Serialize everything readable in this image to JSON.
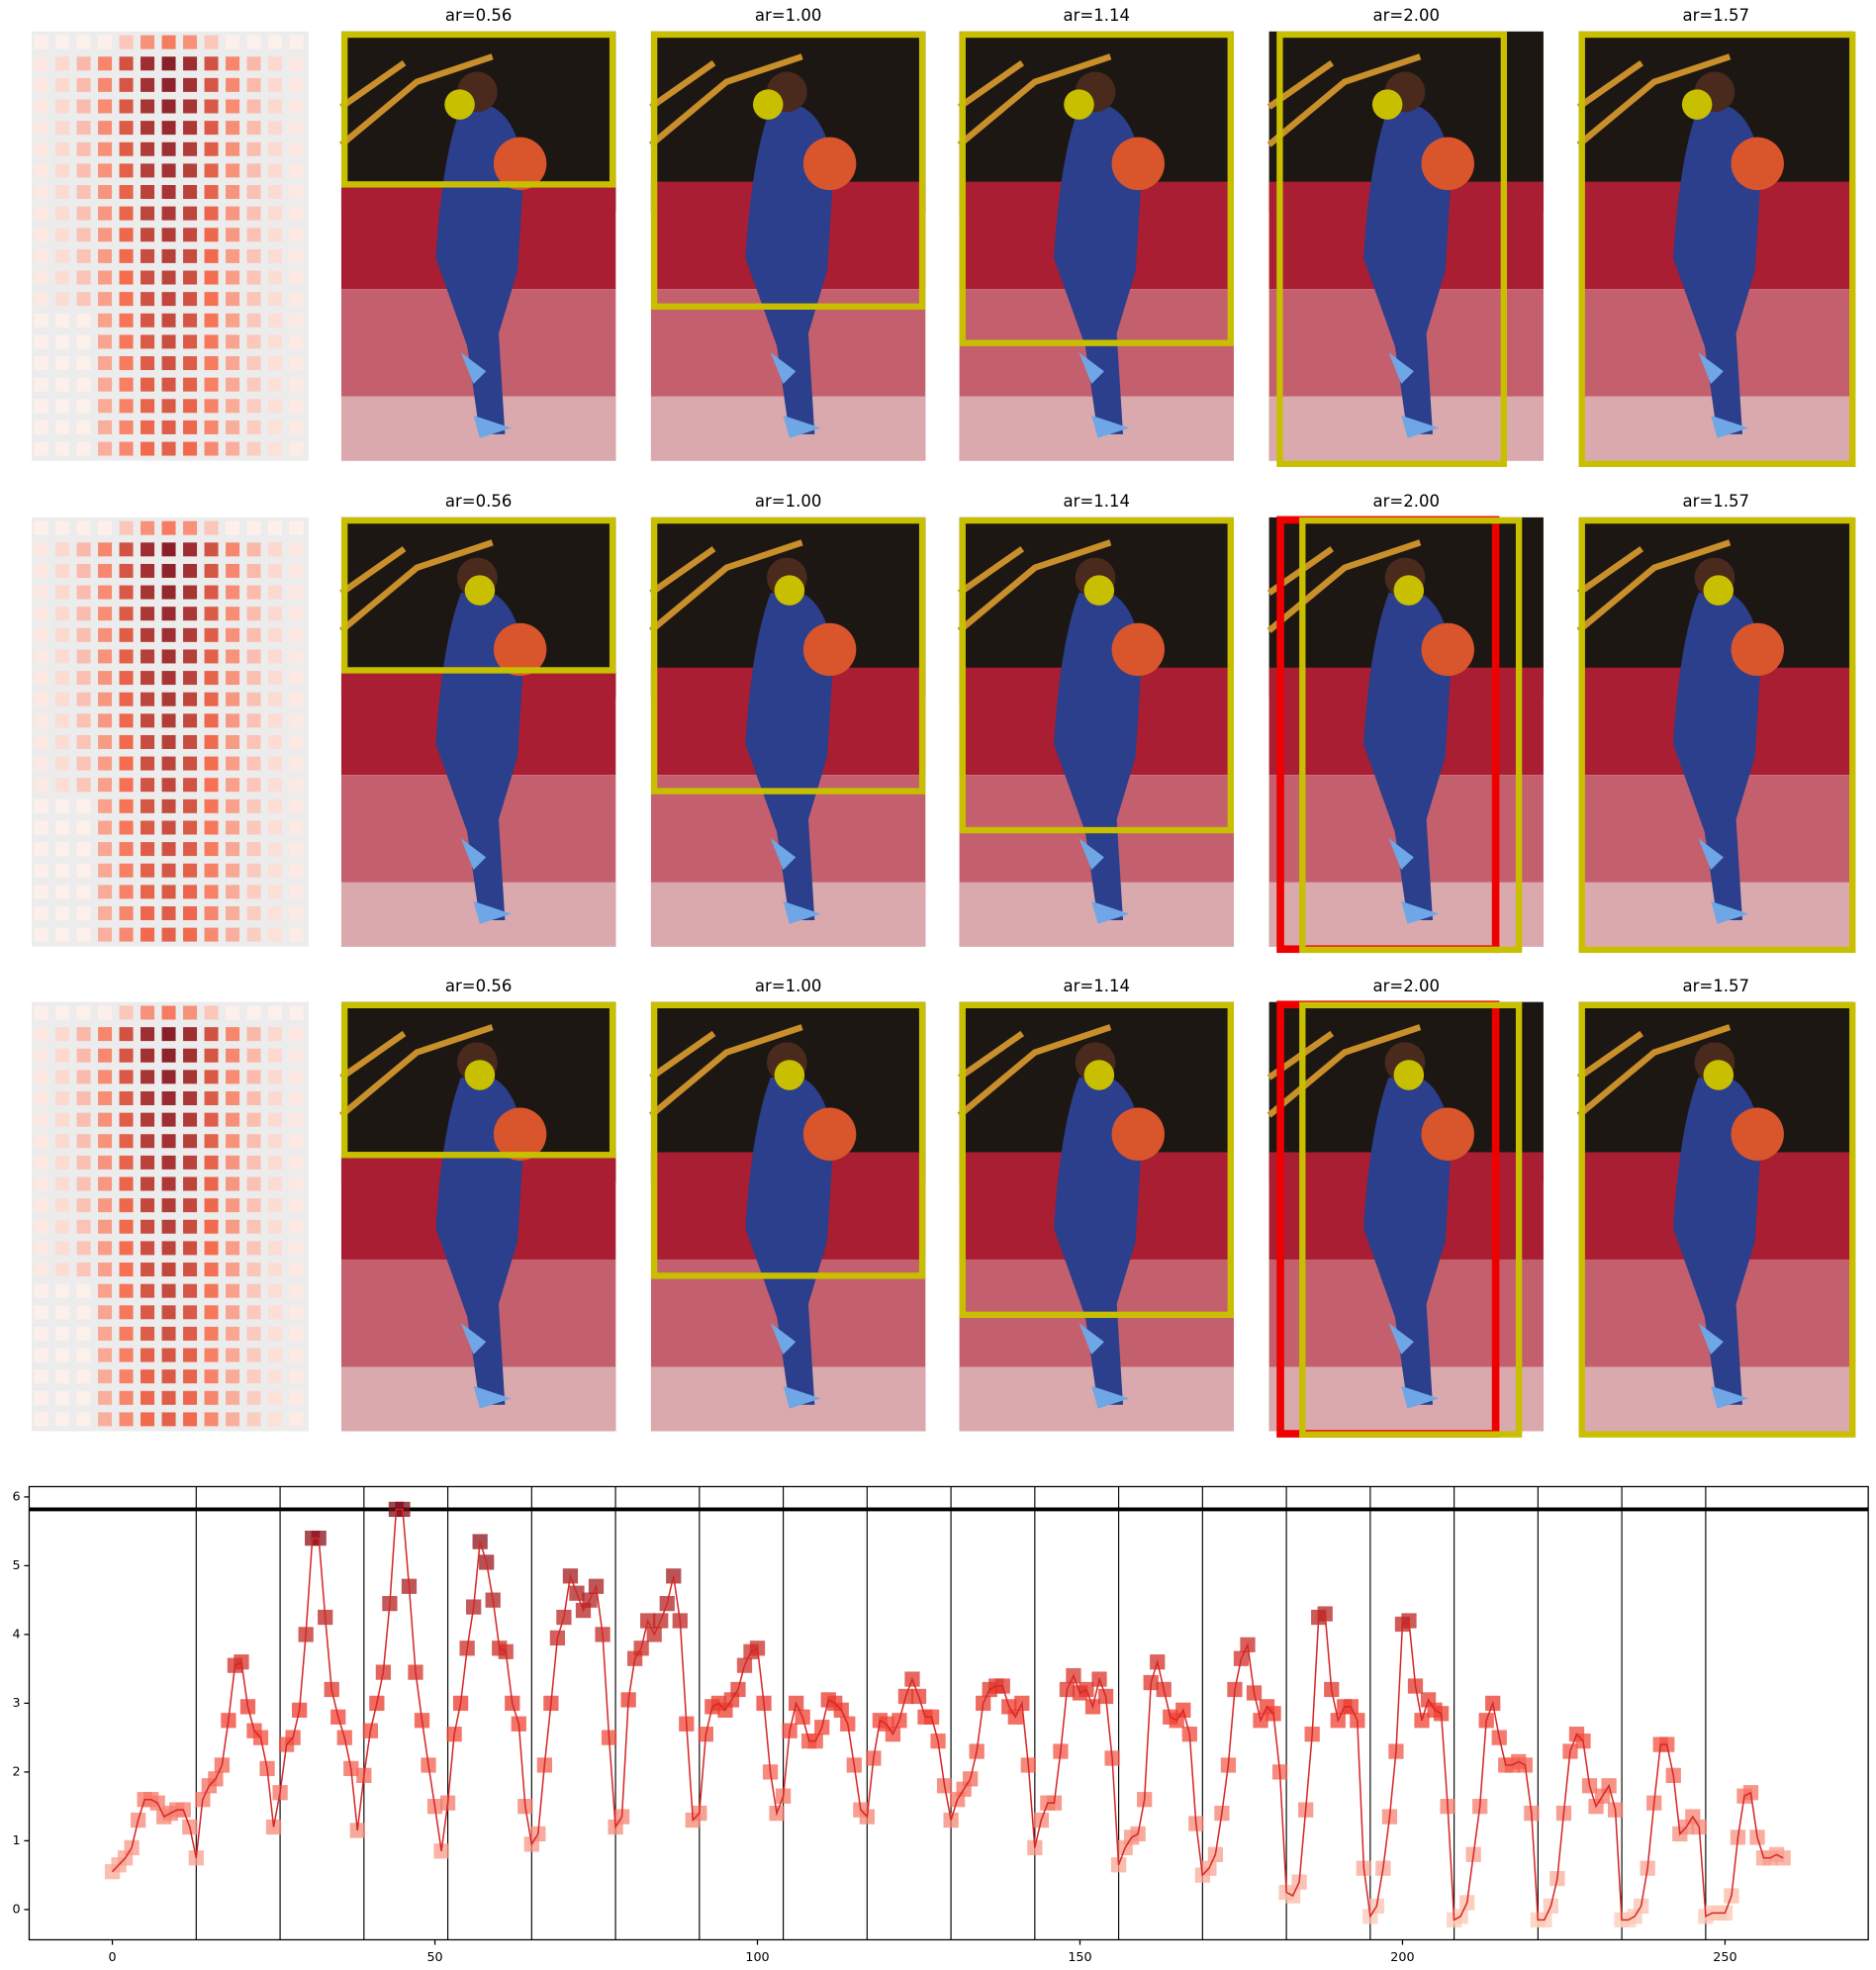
{
  "panel_titles": [
    [
      "ar=0.56",
      "ar=1.00",
      "ar=1.14",
      "ar=2.00",
      "ar=1.57"
    ],
    [
      "ar=0.56",
      "ar=1.00",
      "ar=1.14",
      "ar=2.00",
      "ar=1.57"
    ],
    [
      "ar=0.56",
      "ar=1.00",
      "ar=1.14",
      "ar=2.00",
      "ar=1.57"
    ]
  ],
  "chart_data": {
    "type": "line",
    "color": "#d62728",
    "hline": 5.82,
    "vlines": [
      13,
      26,
      39,
      52,
      65,
      78,
      91,
      104,
      117,
      130,
      143,
      156,
      169,
      182,
      195,
      208,
      221,
      234,
      247
    ],
    "xlim": [
      -12.9,
      272.2
    ],
    "ylim": [
      -0.44,
      6.15
    ],
    "xticks": [
      0,
      50,
      100,
      150,
      200,
      250
    ],
    "yticks": [
      0,
      1,
      2,
      3,
      4,
      5,
      6
    ],
    "x": [
      0,
      1,
      2,
      3,
      4,
      5,
      6,
      7,
      8,
      9,
      10,
      11,
      12,
      13,
      14,
      15,
      16,
      17,
      18,
      19,
      20,
      21,
      22,
      23,
      24,
      25,
      26,
      27,
      28,
      29,
      30,
      31,
      32,
      33,
      34,
      35,
      36,
      37,
      38,
      39,
      40,
      41,
      42,
      43,
      44,
      45,
      46,
      47,
      48,
      49,
      50,
      51,
      52,
      53,
      54,
      55,
      56,
      57,
      58,
      59,
      60,
      61,
      62,
      63,
      64,
      65,
      66,
      67,
      68,
      69,
      70,
      71,
      72,
      73,
      74,
      75,
      76,
      77,
      78,
      79,
      80,
      81,
      82,
      83,
      84,
      85,
      86,
      87,
      88,
      89,
      90,
      91,
      92,
      93,
      94,
      95,
      96,
      97,
      98,
      99,
      100,
      101,
      102,
      103,
      104,
      105,
      106,
      107,
      108,
      109,
      110,
      111,
      112,
      113,
      114,
      115,
      116,
      117,
      118,
      119,
      120,
      121,
      122,
      123,
      124,
      125,
      126,
      127,
      128,
      129,
      130,
      131,
      132,
      133,
      134,
      135,
      136,
      137,
      138,
      139,
      140,
      141,
      142,
      143,
      144,
      145,
      146,
      147,
      148,
      149,
      150,
      151,
      152,
      153,
      154,
      155,
      156,
      157,
      158,
      159,
      160,
      161,
      162,
      163,
      164,
      165,
      166,
      167,
      168,
      169,
      170,
      171,
      172,
      173,
      174,
      175,
      176,
      177,
      178,
      179,
      180,
      181,
      182,
      183,
      184,
      185,
      186,
      187,
      188,
      189,
      190,
      191,
      192,
      193,
      194,
      195,
      196,
      197,
      198,
      199,
      200,
      201,
      202,
      203,
      204,
      205,
      206,
      207,
      208,
      209,
      210,
      211,
      212,
      213,
      214,
      215,
      216,
      217,
      218,
      219,
      220,
      221,
      222,
      223,
      224,
      225,
      226,
      227,
      228,
      229,
      230,
      231,
      232,
      233,
      234,
      235,
      236,
      237,
      238,
      239,
      240,
      241,
      242,
      243,
      244,
      245,
      246,
      247,
      248,
      249,
      250,
      251,
      252,
      253,
      254,
      255,
      256,
      257,
      258,
      259
    ],
    "values": [
      0.55,
      0.65,
      0.75,
      0.9,
      1.3,
      1.6,
      1.6,
      1.55,
      1.35,
      1.4,
      1.45,
      1.45,
      1.2,
      0.75,
      1.6,
      1.8,
      1.9,
      2.1,
      2.75,
      3.55,
      3.6,
      2.95,
      2.6,
      2.5,
      2.05,
      1.2,
      1.7,
      2.4,
      2.5,
      2.9,
      4.0,
      5.4,
      5.4,
      4.25,
      3.2,
      2.8,
      2.5,
      2.05,
      1.15,
      1.95,
      2.6,
      3.0,
      3.45,
      4.45,
      5.82,
      5.82,
      4.7,
      3.45,
      2.75,
      2.1,
      1.5,
      0.85,
      1.55,
      2.55,
      3.0,
      3.8,
      4.4,
      5.35,
      5.05,
      4.5,
      3.8,
      3.75,
      3.0,
      2.7,
      1.5,
      0.95,
      1.1,
      2.1,
      3.0,
      3.95,
      4.25,
      4.85,
      4.6,
      4.35,
      4.5,
      4.7,
      4.0,
      2.5,
      1.2,
      1.35,
      3.05,
      3.65,
      3.8,
      4.2,
      4.0,
      4.2,
      4.45,
      4.85,
      4.2,
      2.7,
      1.3,
      1.4,
      2.55,
      2.95,
      3.0,
      2.9,
      3.05,
      3.2,
      3.55,
      3.75,
      3.8,
      3.0,
      2.0,
      1.4,
      1.65,
      2.6,
      3.0,
      2.8,
      2.45,
      2.45,
      2.65,
      3.05,
      3.0,
      2.9,
      2.7,
      2.1,
      1.45,
      1.35,
      2.2,
      2.75,
      2.7,
      2.55,
      2.75,
      3.1,
      3.35,
      3.1,
      2.8,
      2.8,
      2.45,
      1.8,
      1.3,
      1.6,
      1.75,
      1.9,
      2.3,
      3.0,
      3.2,
      3.25,
      3.25,
      2.95,
      2.8,
      3.0,
      2.1,
      0.9,
      1.3,
      1.55,
      1.55,
      2.3,
      3.2,
      3.4,
      3.15,
      3.2,
      2.95,
      3.35,
      3.1,
      2.2,
      0.65,
      0.9,
      1.05,
      1.1,
      1.6,
      3.3,
      3.6,
      3.2,
      2.8,
      2.75,
      2.9,
      2.55,
      1.25,
      0.5,
      0.6,
      0.8,
      1.4,
      2.1,
      3.2,
      3.65,
      3.85,
      3.15,
      2.75,
      2.95,
      2.85,
      2.0,
      0.25,
      0.2,
      0.4,
      1.45,
      2.55,
      4.25,
      4.3,
      3.2,
      2.75,
      2.95,
      2.95,
      2.75,
      0.6,
      -0.1,
      0.05,
      0.6,
      1.35,
      2.3,
      4.15,
      4.2,
      3.25,
      2.75,
      3.05,
      2.9,
      2.85,
      1.5,
      -0.15,
      -0.1,
      0.1,
      0.8,
      1.5,
      2.75,
      3.0,
      2.5,
      2.1,
      2.1,
      2.15,
      2.1,
      1.4,
      -0.15,
      -0.15,
      0.05,
      0.45,
      1.4,
      2.3,
      2.55,
      2.45,
      1.8,
      1.5,
      1.65,
      1.8,
      1.45,
      -0.15,
      -0.15,
      -0.1,
      0.05,
      0.6,
      1.55,
      2.4,
      2.4,
      1.95,
      1.1,
      1.2,
      1.35,
      1.2,
      -0.1,
      -0.05,
      -0.05,
      -0.05,
      0.2,
      1.05,
      1.65,
      1.7,
      1.05,
      0.75,
      0.75,
      0.8,
      0.75
    ]
  }
}
